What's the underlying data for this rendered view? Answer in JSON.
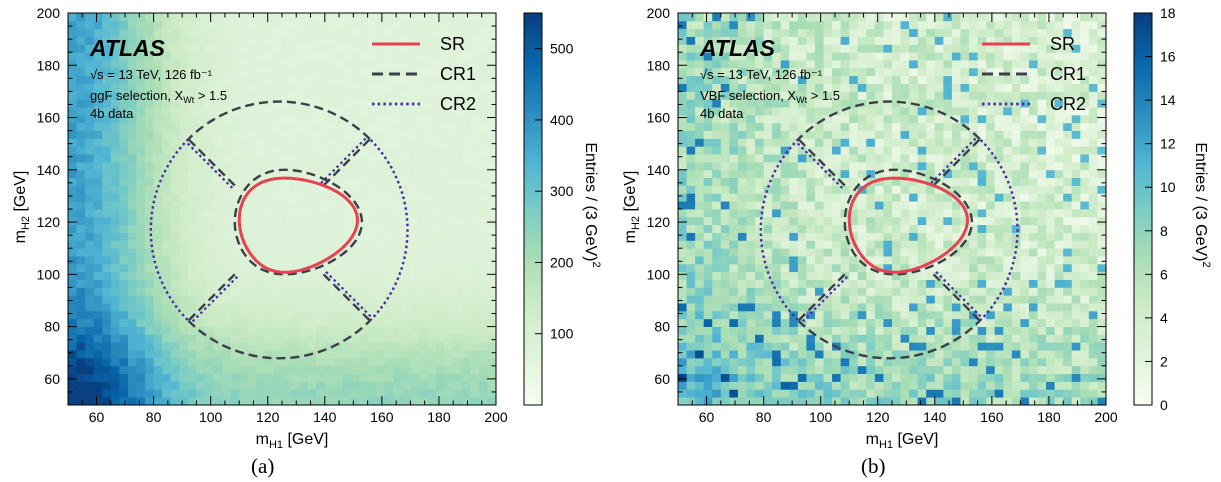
{
  "chart_data": [
    {
      "type": "heatmap",
      "panel_label": "(a)",
      "xlabel": "m_{H1} [GeV]",
      "ylabel": "m_{H2} [GeV]",
      "xlim": [
        50,
        200
      ],
      "ylim": [
        50,
        200
      ],
      "x_ticks": [
        "60",
        "80",
        "100",
        "120",
        "140",
        "160",
        "180",
        "200"
      ],
      "y_ticks": [
        "60",
        "80",
        "100",
        "120",
        "140",
        "160",
        "180",
        "200"
      ],
      "bin_width_gev": 3,
      "colorbar": {
        "label": "Entries / (3 GeV)²",
        "range": [
          0,
          550
        ],
        "ticks": [
          "100",
          "200",
          "300",
          "400",
          "500"
        ],
        "tick_values": [
          100,
          200,
          300,
          400,
          500
        ]
      },
      "atlas": {
        "label": "ATLAS",
        "line1": "√s = 13 TeV, 126 fb⁻¹",
        "line2": "ggF selection, X_Wt > 1.5",
        "line3": "4b data"
      },
      "legend": {
        "placement": "top-right",
        "entries": [
          {
            "label": "SR",
            "style": "solid",
            "color": "#e8414f"
          },
          {
            "label": "CR1",
            "style": "dashed",
            "color": "#3a3f4a"
          },
          {
            "label": "CR2",
            "style": "dotted",
            "color": "#4b2aa6"
          }
        ]
      },
      "density": {
        "model": "ggF",
        "peak": 540
      }
    },
    {
      "type": "heatmap",
      "panel_label": "(b)",
      "xlabel": "m_{H1} [GeV]",
      "ylabel": "m_{H2} [GeV]",
      "xlim": [
        50,
        200
      ],
      "ylim": [
        50,
        200
      ],
      "x_ticks": [
        "60",
        "80",
        "100",
        "120",
        "140",
        "160",
        "180",
        "200"
      ],
      "y_ticks": [
        "60",
        "80",
        "100",
        "120",
        "140",
        "160",
        "180",
        "200"
      ],
      "bin_width_gev": 3,
      "colorbar": {
        "label": "Entries / (3 GeV)²",
        "range": [
          0,
          18
        ],
        "ticks": [
          "0",
          "2",
          "4",
          "6",
          "8",
          "10",
          "12",
          "14",
          "16",
          "18"
        ],
        "tick_values": [
          0,
          2,
          4,
          6,
          8,
          10,
          12,
          14,
          16,
          18
        ]
      },
      "atlas": {
        "label": "ATLAS",
        "line1": "√s = 13 TeV, 126 fb⁻¹",
        "line2": "VBF selection, X_Wt > 1.5",
        "line3": "4b data"
      },
      "legend": {
        "placement": "top-right",
        "entries": [
          {
            "label": "SR",
            "style": "solid",
            "color": "#e8414f"
          },
          {
            "label": "CR1",
            "style": "dashed",
            "color": "#3a3f4a"
          },
          {
            "label": "CR2",
            "style": "dotted",
            "color": "#4b2aa6"
          }
        ]
      },
      "density": {
        "model": "VBF",
        "peak": 18
      }
    }
  ],
  "regions": {
    "center": [
      124,
      117
    ],
    "sr_note": "SR: distorted ellipse around (124,117) GeV",
    "cr1_outer_radius_gev": 45,
    "cr2_outer_radius_gev": 45
  },
  "colors": {
    "colormap": [
      "#f7fcf0",
      "#e0f3db",
      "#ccebc5",
      "#a8ddb5",
      "#7bccc4",
      "#4eb3d3",
      "#2b8cbe",
      "#0868ac",
      "#084081"
    ],
    "sr": "#e8414f",
    "cr1": "#3a3f4a",
    "cr2": "#4b2aa6"
  }
}
